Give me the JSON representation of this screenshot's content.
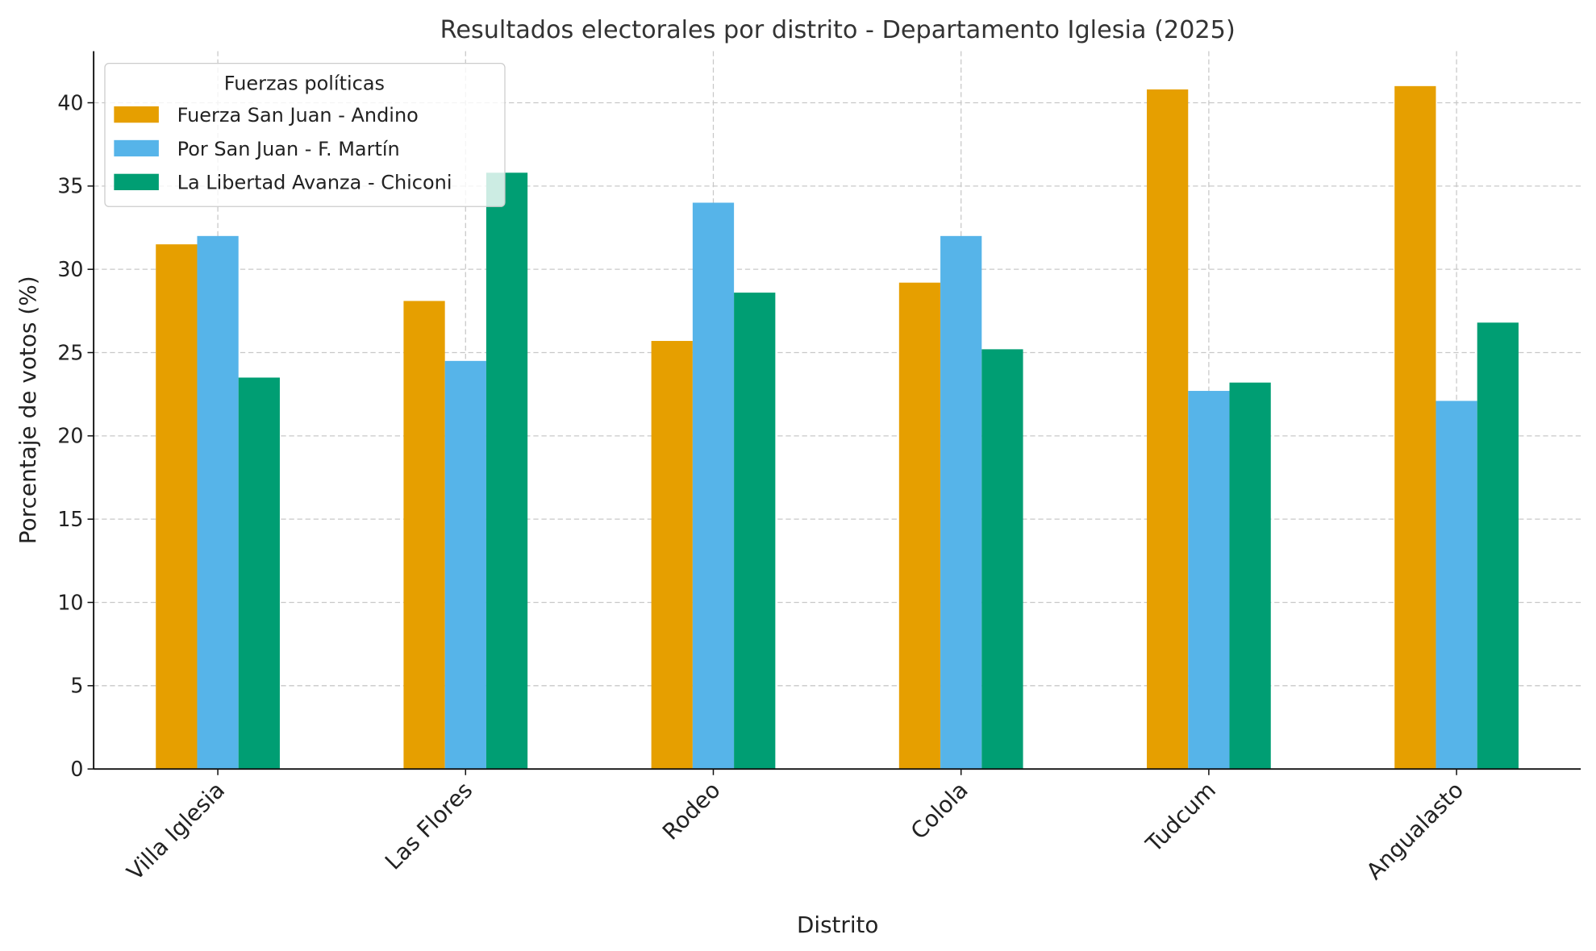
{
  "chart_data": {
    "type": "bar",
    "title": "Resultados electorales por distrito - Departamento Iglesia (2025)",
    "xlabel": "Distrito",
    "ylabel": "Porcentaje de votos (%)",
    "ylim": [
      0,
      43.1
    ],
    "yticks": [
      0,
      5,
      10,
      15,
      20,
      25,
      30,
      35,
      40
    ],
    "grid": true,
    "legend": {
      "title": "Fuerzas políticas",
      "placement": "top-left"
    },
    "categories": [
      "Villa Iglesia",
      "Las Flores",
      "Rodeo",
      "Colola",
      "Tudcum",
      "Angualasto"
    ],
    "series": [
      {
        "name": "Fuerza San Juan - Andino",
        "color": "#E69F00",
        "values": [
          31.5,
          28.1,
          25.7,
          29.2,
          40.8,
          41.0
        ]
      },
      {
        "name": "Por San Juan - F. Martín",
        "color": "#56B4E9",
        "values": [
          32.0,
          24.5,
          34.0,
          32.0,
          22.7,
          22.1
        ]
      },
      {
        "name": "La Libertad Avanza - Chiconi",
        "color": "#009E73",
        "values": [
          23.5,
          35.8,
          28.6,
          25.2,
          23.2,
          26.8
        ]
      }
    ]
  }
}
